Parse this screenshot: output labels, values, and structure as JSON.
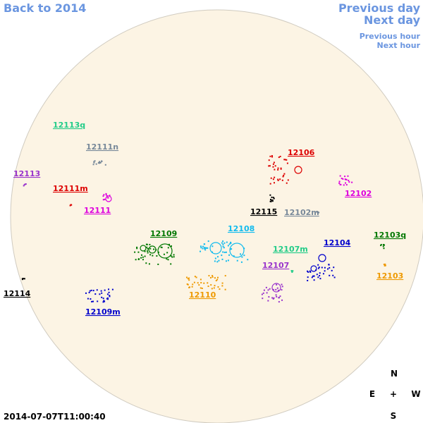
{
  "navigation": {
    "back": "Back to 2014",
    "previous_day": "Previous day",
    "next_day": "Next day",
    "previous_hour": "Previous hour",
    "next_hour": "Next hour"
  },
  "regions": [
    "12113q",
    "12111n",
    "12113",
    "12111m",
    "12111",
    "12106",
    "12102",
    "12115",
    "12102m",
    "12109",
    "12108",
    "12104",
    "12103q",
    "12107m",
    "12107",
    "12103",
    "12114",
    "12110",
    "12109m"
  ],
  "compass": {
    "north": "N",
    "east": "E",
    "center": "+",
    "west": "W",
    "south": "S"
  },
  "timestamp": "2014-07-07T11:00:40"
}
